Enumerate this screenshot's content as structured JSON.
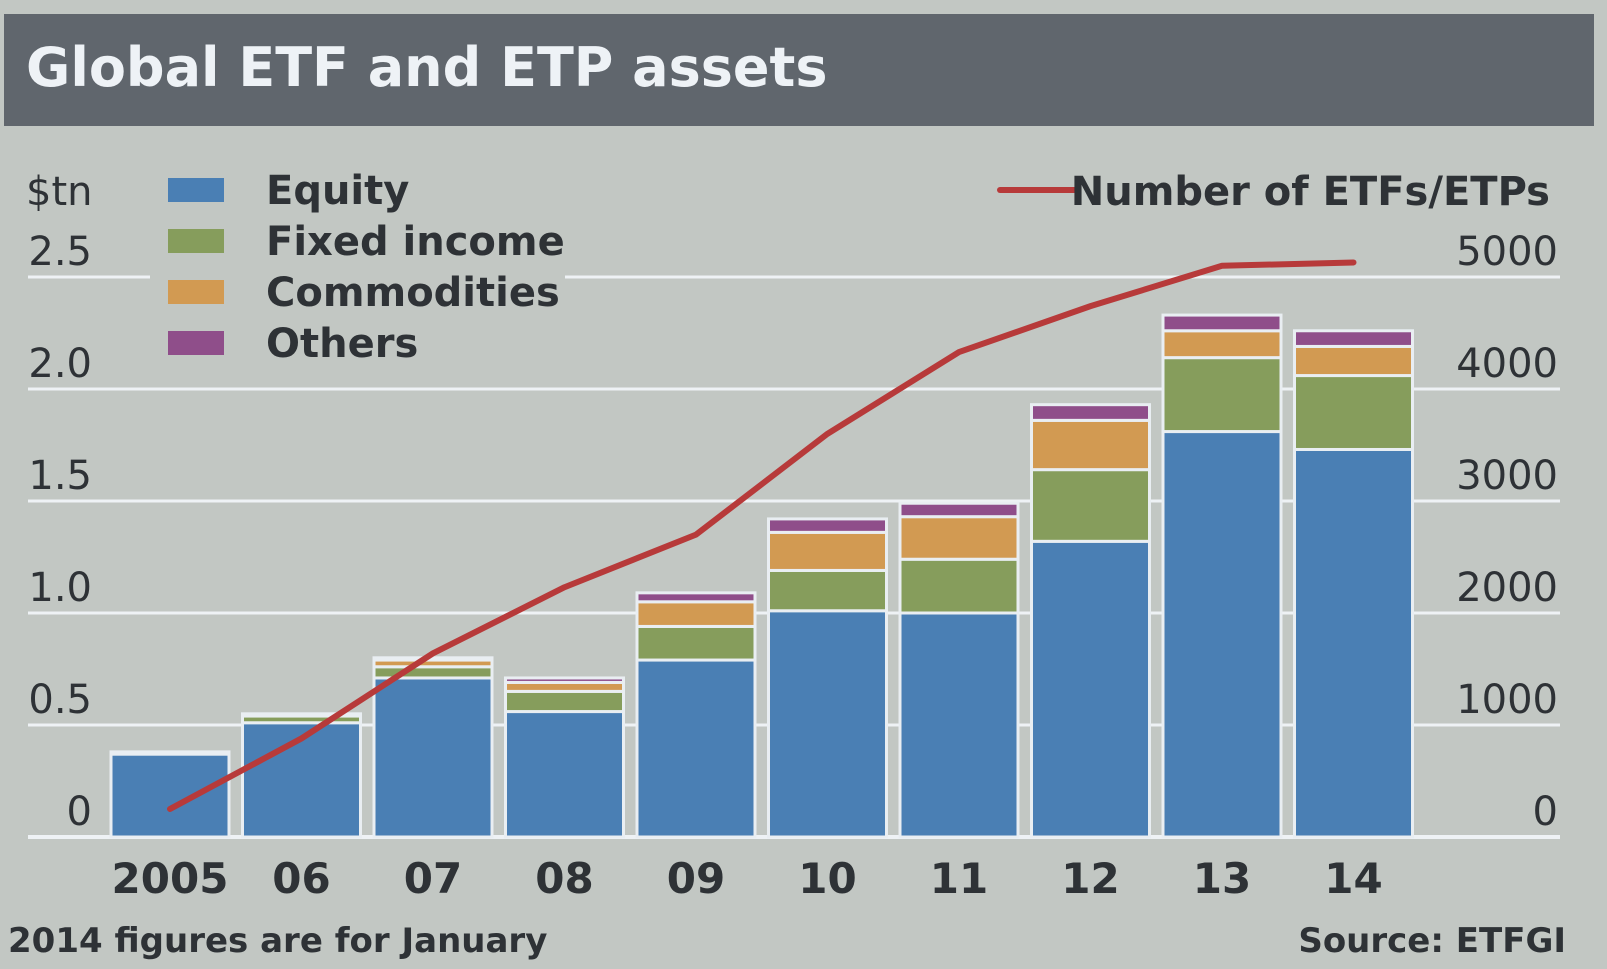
{
  "header": {
    "title": "Global ETF and ETP assets"
  },
  "chart_data": {
    "type": "bar",
    "stacked": true,
    "title": "Global ETF and ETP assets",
    "ylabel_left": "$tn",
    "ylabel_right": "",
    "ylim_left": [
      0,
      2.5
    ],
    "ylim_right": [
      0,
      5000
    ],
    "yticks_left": [
      "0",
      "0.5",
      "1.0",
      "1.5",
      "2.0",
      "2.5"
    ],
    "yticks_right": [
      "0",
      "1000",
      "2000",
      "3000",
      "4000",
      "5000"
    ],
    "categories": [
      "2005",
      "06",
      "07",
      "08",
      "09",
      "10",
      "11",
      "12",
      "13",
      "14"
    ],
    "series": [
      {
        "name": "Equity",
        "color": "#4a7fb4",
        "values": [
          0.37,
          0.51,
          0.71,
          0.56,
          0.79,
          1.01,
          1.0,
          1.32,
          1.81,
          1.73
        ]
      },
      {
        "name": "Fixed income",
        "color": "#869d5c",
        "values": [
          0.01,
          0.03,
          0.05,
          0.09,
          0.15,
          0.18,
          0.24,
          0.32,
          0.33,
          0.33
        ]
      },
      {
        "name": "Commodities",
        "color": "#d29a52",
        "values": [
          0.0,
          0.01,
          0.03,
          0.04,
          0.11,
          0.17,
          0.19,
          0.22,
          0.12,
          0.13
        ]
      },
      {
        "name": "Others",
        "color": "#8f4e8a",
        "values": [
          0.0,
          0.0,
          0.01,
          0.02,
          0.04,
          0.06,
          0.06,
          0.07,
          0.07,
          0.07
        ]
      }
    ],
    "line_series": {
      "name": "Number of ETFs/ETPs",
      "color": "#b73a3a",
      "axis": "right",
      "values": [
        250,
        880,
        1640,
        2230,
        2700,
        3600,
        4330,
        4740,
        5100,
        5130
      ]
    },
    "grid": true,
    "legend_position": "top-left",
    "footnote": "2014 figures are for January",
    "source": "Source: ETFGI"
  }
}
